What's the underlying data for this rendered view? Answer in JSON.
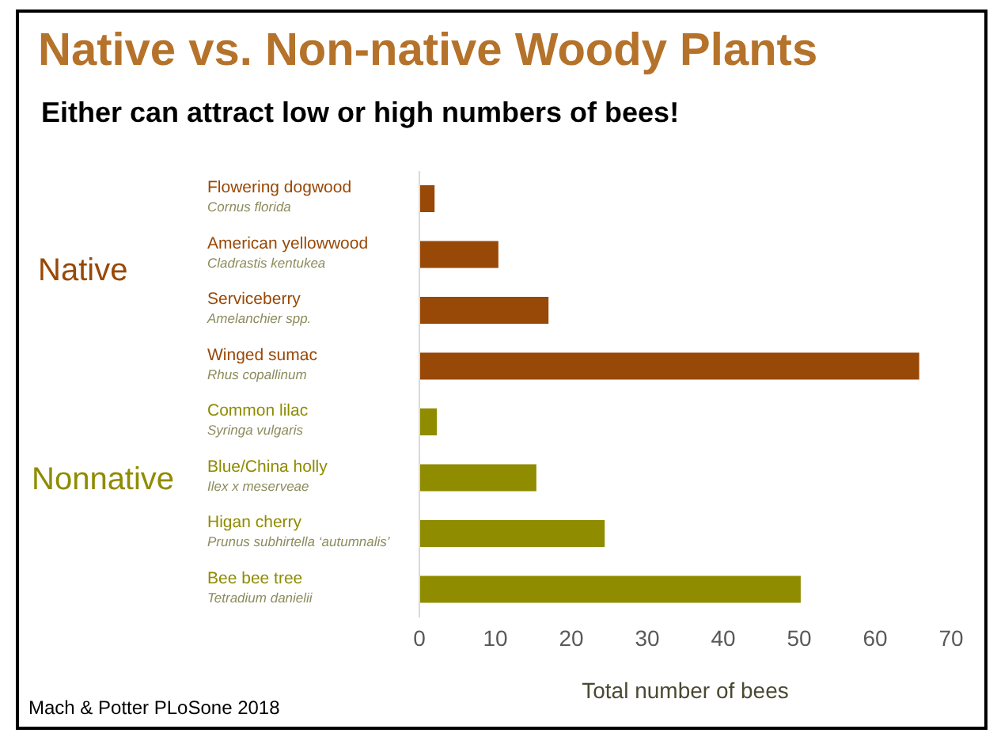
{
  "chart_data": {
    "type": "bar",
    "orientation": "horizontal",
    "title": "Native vs. Non-native Woody Plants",
    "subtitle": "Either can attract low or high numbers of bees!",
    "xlabel": "Total number of bees",
    "categories": [
      "Flowering dogwood\nCornus florida",
      "American yellowwood\nCladrastis kentukea",
      "Serviceberry\nAmelanchier spp.",
      "Winged sumac\nRhus copallinum",
      "Common lilac\nSyringa vulgaris",
      "Blue/China holly\nIlex x meserveae",
      "Higan cherry\nPrunus subhirtella ‘autumnalis’",
      "Bee bee tree\nTetradium danielii"
    ],
    "values": [
      2,
      10.4,
      17,
      65.8,
      2.3,
      15.4,
      24.4,
      50.2
    ],
    "colors": [
      "#984807",
      "#984807",
      "#984807",
      "#984807",
      "#8f8c00",
      "#8f8c00",
      "#8f8c00",
      "#8f8c00"
    ],
    "xlim": [
      0,
      70
    ],
    "xticks": [
      0,
      10,
      20,
      30,
      40,
      50,
      60,
      70
    ],
    "annotations": [
      "Native",
      "Nonnative",
      "Mach & Potter PLoSone 2018"
    ]
  }
}
